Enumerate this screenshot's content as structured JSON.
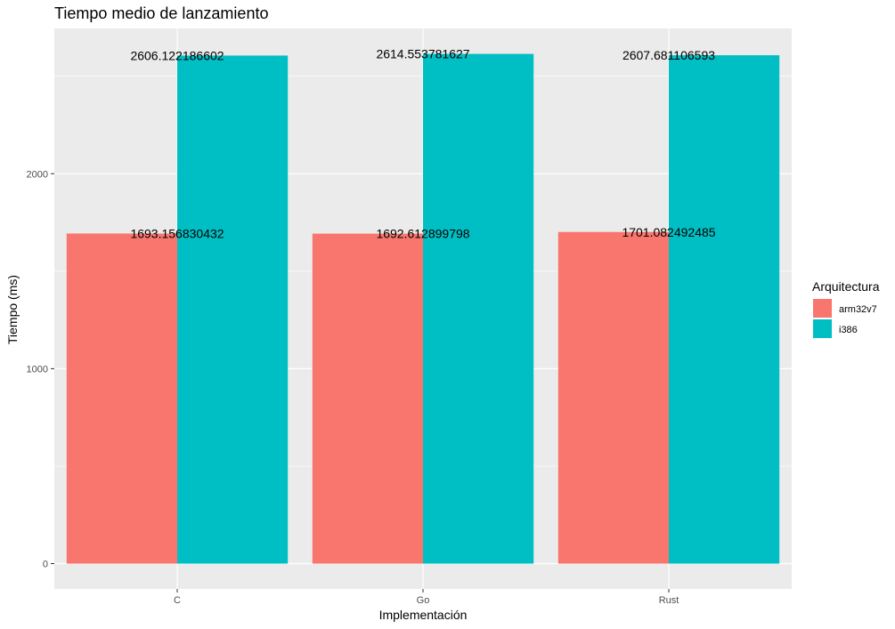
{
  "chart_data": {
    "type": "bar",
    "title": "Tiempo medio de lanzamiento",
    "xlabel": "Implementación",
    "ylabel": "Tiempo (ms)",
    "categories": [
      "C",
      "Go",
      "Rust"
    ],
    "series": [
      {
        "name": "arm32v7",
        "color": "#F8766D",
        "values": [
          1693.156830432,
          1692.612899798,
          1701.082492485
        ],
        "labels": [
          "1693.156830432",
          "1692.612899798",
          "1701.082492485"
        ]
      },
      {
        "name": "i386",
        "color": "#00BFC4",
        "values": [
          2606.122186602,
          2614.553781627,
          2607.681106593
        ],
        "labels": [
          "2606.122186602",
          "2614.553781627",
          "2607.681106593"
        ]
      }
    ],
    "ylim": [
      -130,
      2745
    ],
    "yticks": [
      0,
      1000,
      2000
    ],
    "ytick_labels": [
      "0",
      "1000",
      "2000"
    ],
    "grid": true,
    "legend": {
      "title": "Arquitectura",
      "placement": "right"
    },
    "colors": {
      "panel": "#EBEBEB",
      "grid": "#FFFFFF"
    }
  }
}
